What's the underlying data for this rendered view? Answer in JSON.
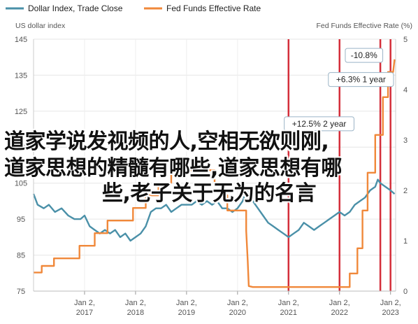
{
  "chart_data": {
    "type": "line",
    "legend": [
      {
        "name": "Dollar Index, Trade Close",
        "color": "#4a90a8"
      },
      {
        "name": "Fed Funds Effective Rate",
        "color": "#f0883a"
      }
    ],
    "legend_placement": "top-left",
    "left_axis": {
      "title": "US dollar index",
      "ylim": [
        75,
        145
      ],
      "ticks": [
        "145",
        "135",
        "125",
        "115",
        "105",
        "95",
        "85",
        "75"
      ]
    },
    "right_axis": {
      "title": "Fed Funds Effective Rate (%)",
      "ylim": [
        0,
        5
      ],
      "ticks": [
        "5",
        "4",
        "3",
        "2",
        "1",
        "0"
      ]
    },
    "x_ticks": [
      {
        "line1": "Jan 2,",
        "line2": "2017",
        "year": 2017.0
      },
      {
        "line1": "Jan 2,",
        "line2": "2018",
        "year": 2018.0
      },
      {
        "line1": "Jan 2,",
        "line2": "2019",
        "year": 2019.0
      },
      {
        "line1": "Jan 2,",
        "line2": "2020",
        "year": 2020.0
      },
      {
        "line1": "Jan 2,",
        "line2": "2021",
        "year": 2021.0
      },
      {
        "line1": "Jan 2,",
        "line2": "2022",
        "year": 2022.0
      },
      {
        "line1": "Jan 2,",
        "line2": "2023",
        "year": 2023.0
      }
    ],
    "xlim": [
      2016.0,
      2023.1
    ],
    "grid": true,
    "series": [
      {
        "name": "Dollar Index, Trade Close",
        "axis": "left",
        "x": [
          2016.0,
          2016.08,
          2016.2,
          2016.3,
          2016.42,
          2016.55,
          2016.68,
          2016.8,
          2016.92,
          2017.0,
          2017.1,
          2017.2,
          2017.3,
          2017.4,
          2017.5,
          2017.6,
          2017.7,
          2017.8,
          2017.9,
          2018.0,
          2018.1,
          2018.2,
          2018.3,
          2018.4,
          2018.5,
          2018.6,
          2018.7,
          2018.8,
          2018.9,
          2019.0,
          2019.1,
          2019.2,
          2019.3,
          2019.4,
          2019.5,
          2019.6,
          2019.7,
          2019.8,
          2019.9,
          2020.0,
          2020.1,
          2020.18,
          2020.22,
          2020.3,
          2020.4,
          2020.5,
          2020.6,
          2020.7,
          2020.8,
          2020.9,
          2021.0,
          2021.1,
          2021.2,
          2021.3,
          2021.4,
          2021.5,
          2021.6,
          2021.7,
          2021.8,
          2021.9,
          2022.0,
          2022.1,
          2022.2,
          2022.3,
          2022.4,
          2022.5,
          2022.6,
          2022.7,
          2022.75,
          2022.8,
          2022.9,
          2023.0,
          2023.08
        ],
        "y": [
          102,
          99,
          98,
          99,
          97,
          98,
          96,
          95,
          95,
          96,
          93,
          92,
          91,
          92,
          91,
          92,
          90,
          91,
          89,
          90,
          91,
          93,
          97,
          98,
          98,
          99,
          97,
          98,
          99,
          99,
          99,
          100,
          99,
          100,
          99,
          100,
          98,
          98,
          97,
          98,
          100,
          103,
          102,
          100,
          98,
          96,
          94,
          93,
          92,
          91,
          90,
          91,
          92,
          94,
          93,
          92,
          93,
          94,
          95,
          96,
          97,
          96,
          97,
          99,
          100,
          101,
          103,
          104,
          106,
          105,
          104,
          103,
          102
        ]
      },
      {
        "name": "Fed Funds Effective Rate",
        "axis": "right",
        "x": [
          2016.0,
          2016.16,
          2016.16,
          2016.4,
          2016.4,
          2016.9,
          2016.9,
          2017.2,
          2017.2,
          2017.45,
          2017.45,
          2017.95,
          2017.95,
          2018.2,
          2018.2,
          2018.45,
          2018.45,
          2018.7,
          2018.7,
          2018.95,
          2018.95,
          2019.55,
          2019.55,
          2019.7,
          2019.7,
          2019.8,
          2019.8,
          2020.17,
          2020.17,
          2020.2,
          2020.22,
          2020.3,
          2021.0,
          2022.0,
          2022.2,
          2022.2,
          2022.35,
          2022.35,
          2022.45,
          2022.45,
          2022.55,
          2022.55,
          2022.7,
          2022.7,
          2022.85,
          2022.85,
          2022.95,
          2022.95,
          2023.05,
          2023.08
        ],
        "y": [
          0.37,
          0.37,
          0.5,
          0.5,
          0.65,
          0.65,
          0.9,
          0.9,
          1.15,
          1.15,
          1.4,
          1.4,
          1.65,
          1.65,
          1.9,
          1.9,
          2.15,
          2.15,
          2.4,
          2.4,
          2.4,
          2.4,
          2.15,
          2.15,
          1.9,
          1.9,
          1.6,
          1.6,
          1.2,
          0.6,
          0.1,
          0.08,
          0.08,
          0.08,
          0.08,
          0.35,
          0.35,
          0.85,
          0.85,
          1.6,
          1.6,
          2.35,
          2.35,
          3.1,
          3.1,
          3.85,
          3.85,
          4.35,
          4.35,
          4.6
        ]
      }
    ],
    "vertical_markers": [
      {
        "x": 2021.0,
        "color": "#d42e3a"
      },
      {
        "x": 2022.0,
        "color": "#d42e3a"
      },
      {
        "x": 2022.8,
        "color": "#d42e3a"
      },
      {
        "x": 2023.0,
        "color": "#d42e3a"
      }
    ],
    "annotations": [
      {
        "text": "-10.8%",
        "x": 2022.48,
        "y": 140.5
      },
      {
        "text": "+6.3% 1 year",
        "x": 2022.42,
        "y": 133.8
      },
      {
        "text": "+12.5% 2 year",
        "x": 2021.6,
        "y": 121.5
      }
    ]
  },
  "overlay": {
    "line1": "道家学说发视频的人,空相无欲则刚,",
    "line2": "道家思想的精髓有哪些,道家思想有哪",
    "line3": "些,老子关于无为的名言"
  }
}
